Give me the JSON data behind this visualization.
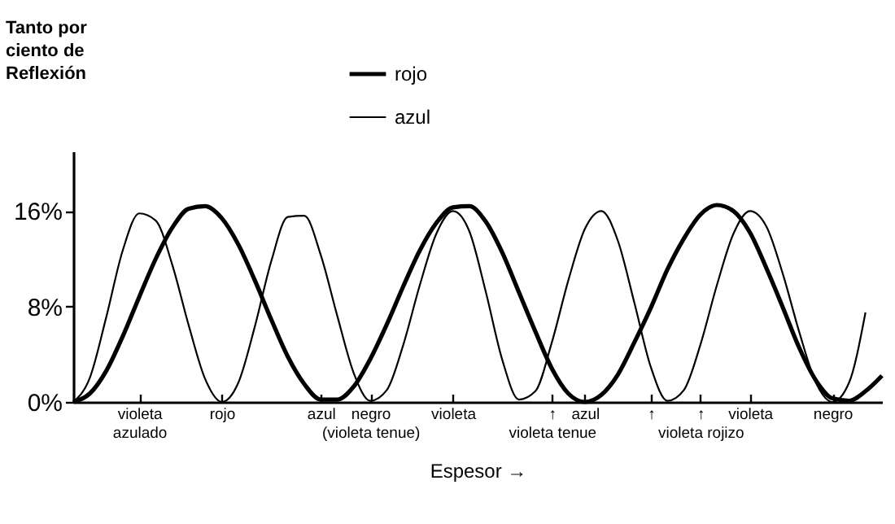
{
  "chart_data": {
    "type": "line",
    "ylabel": "Tanto por ciento de Reflexión",
    "xlabel": "Espesor →",
    "ylim": [
      0,
      21
    ],
    "yticks": [
      {
        "value": 0,
        "label": "0%"
      },
      {
        "value": 8,
        "label": "8%"
      },
      {
        "value": 16,
        "label": "16%"
      }
    ],
    "categories": [
      null,
      null,
      null,
      null,
      "violeta\nazulado",
      null,
      null,
      null,
      null,
      "rojo",
      null,
      null,
      null,
      null,
      null,
      "azul",
      null,
      null,
      "negro\n(violeta tenue)",
      null,
      null,
      null,
      null,
      "violeta",
      null,
      null,
      null,
      null,
      null,
      "↑\nvioleta tenue",
      null,
      "azul",
      null,
      null,
      null,
      "↑",
      null,
      null,
      "↑\nvioleta rojizo",
      null,
      null,
      "violeta",
      null,
      null,
      null,
      null,
      "negro",
      null,
      null,
      null
    ],
    "legend": "top",
    "grid": false,
    "marker": "none",
    "line_style": "solid",
    "series": [
      {
        "name": "rojo",
        "color": "#000000",
        "values": [
          0,
          0.7,
          2.6,
          5.5,
          8.8,
          12.0,
          14.6,
          16.2,
          16.4,
          15.4,
          13.2,
          10.2,
          6.9,
          3.8,
          1.5,
          0.2,
          0.2,
          1.3,
          3.6,
          6.5,
          9.7,
          12.7,
          15.0,
          16.3,
          16.4,
          15.1,
          12.5,
          9.2,
          5.9,
          2.8,
          0.7,
          0,
          0.6,
          2.3,
          5.0,
          7.9,
          11.1,
          13.7,
          15.7,
          16.5,
          16.0,
          14.2,
          11.2,
          7.9,
          4.5,
          1.8,
          0.3,
          0.1,
          0.9,
          2.2
        ]
      },
      {
        "name": "azul",
        "color": "#000000",
        "values": [
          0,
          2.0,
          7.1,
          12.7,
          15.8,
          15.2,
          11.5,
          6.4,
          1.9,
          0,
          1.6,
          6.3,
          11.8,
          15.5,
          15.6,
          12.3,
          7.2,
          2.4,
          0.1,
          1.0,
          4.8,
          9.8,
          14.1,
          16.0,
          14.3,
          9.2,
          3.5,
          0.2,
          0.9,
          5.0,
          10.2,
          14.5,
          16.0,
          13.5,
          8.3,
          2.9,
          0.1,
          1.0,
          4.8,
          9.8,
          14.1,
          16.0,
          14.7,
          10.7,
          5.8,
          1.6,
          0,
          1.6,
          7.5,
          null
        ]
      }
    ]
  }
}
